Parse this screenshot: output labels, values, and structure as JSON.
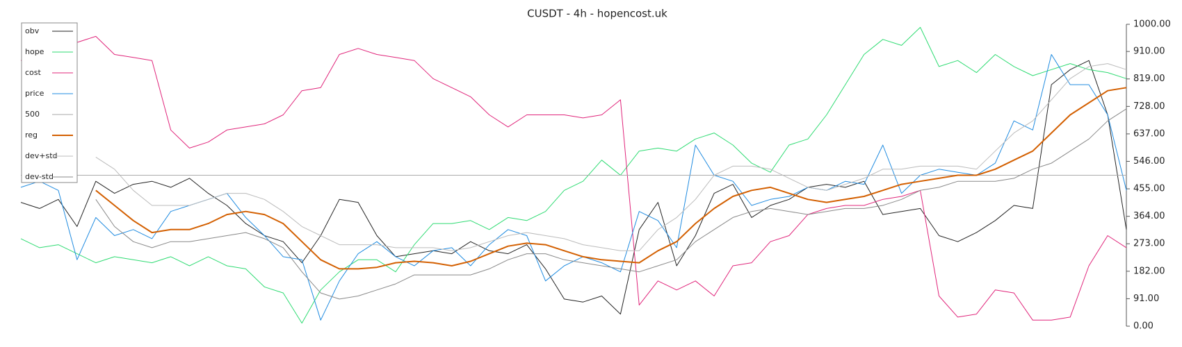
{
  "chart_data": {
    "type": "line",
    "title": "CUSDT - 4h - hopencost.uk",
    "ylim": [
      0,
      1000
    ],
    "yticks": [
      {
        "value": 0,
        "label": "0.00"
      },
      {
        "value": 91,
        "label": "91.00"
      },
      {
        "value": 182,
        "label": "182.00"
      },
      {
        "value": 273,
        "label": "273.00"
      },
      {
        "value": 364,
        "label": "364.00"
      },
      {
        "value": 455,
        "label": "455.00"
      },
      {
        "value": 546,
        "label": "546.00"
      },
      {
        "value": 637,
        "label": "637.00"
      },
      {
        "value": 728,
        "label": "728.00"
      },
      {
        "value": 819,
        "label": "819.00"
      },
      {
        "value": 910,
        "label": "910.00"
      },
      {
        "value": 1000,
        "label": "1000.00"
      }
    ],
    "grid": false,
    "legend": "upper-left",
    "series": [
      {
        "name": "obv",
        "color": "#222222",
        "values": [
          410,
          390,
          420,
          330,
          480,
          440,
          470,
          480,
          460,
          490,
          440,
          400,
          340,
          300,
          280,
          210,
          300,
          420,
          410,
          300,
          230,
          240,
          250,
          240,
          280,
          250,
          240,
          270,
          190,
          90,
          80,
          100,
          40,
          320,
          410,
          200,
          300,
          440,
          470,
          360,
          400,
          420,
          460,
          470,
          460,
          480,
          370,
          380,
          390,
          300,
          280,
          310,
          350,
          400,
          390,
          800,
          850,
          880,
          700,
          320
        ]
      },
      {
        "name": "hope",
        "color": "#2edb72",
        "values": [
          290,
          260,
          270,
          240,
          210,
          230,
          220,
          210,
          230,
          200,
          230,
          200,
          190,
          130,
          110,
          10,
          120,
          180,
          220,
          220,
          180,
          270,
          340,
          340,
          350,
          320,
          360,
          350,
          380,
          450,
          480,
          550,
          500,
          580,
          590,
          580,
          620,
          640,
          600,
          540,
          510,
          600,
          620,
          700,
          800,
          900,
          950,
          930,
          990,
          860,
          880,
          840,
          900,
          860,
          830,
          850,
          870,
          850,
          840,
          820
        ]
      },
      {
        "name": "cost",
        "color": "#e0247a",
        "values": [
          880,
          900,
          970,
          940,
          960,
          900,
          890,
          880,
          650,
          590,
          610,
          650,
          660,
          670,
          700,
          780,
          790,
          900,
          920,
          900,
          890,
          880,
          820,
          790,
          760,
          700,
          660,
          700,
          700,
          700,
          690,
          700,
          750,
          70,
          150,
          120,
          150,
          100,
          200,
          210,
          280,
          300,
          370,
          390,
          400,
          400,
          420,
          430,
          450,
          100,
          30,
          40,
          120,
          110,
          20,
          20,
          30,
          200,
          300,
          260
        ]
      },
      {
        "name": "price",
        "color": "#1f8be0",
        "values": [
          460,
          480,
          450,
          220,
          360,
          300,
          320,
          290,
          380,
          400,
          420,
          440,
          360,
          300,
          230,
          220,
          20,
          150,
          240,
          280,
          230,
          200,
          250,
          260,
          200,
          270,
          320,
          300,
          150,
          200,
          230,
          210,
          180,
          380,
          350,
          260,
          600,
          500,
          480,
          400,
          420,
          430,
          460,
          450,
          480,
          470,
          600,
          440,
          500,
          520,
          510,
          500,
          540,
          680,
          650,
          900,
          800,
          800,
          700,
          450
        ]
      },
      {
        "name": "500",
        "color": "#aaaaaa",
        "values": [
          500,
          500,
          500,
          500,
          500,
          500,
          500,
          500,
          500,
          500,
          500,
          500,
          500,
          500,
          500,
          500,
          500,
          500,
          500,
          500,
          500,
          500,
          500,
          500,
          500,
          500,
          500,
          500,
          500,
          500,
          500,
          500,
          500,
          500,
          500,
          500,
          500,
          500,
          500,
          500,
          500,
          500,
          500,
          500,
          500,
          500,
          500,
          500,
          500,
          500,
          500,
          500,
          500,
          500,
          500,
          500,
          500,
          500,
          500,
          500
        ]
      },
      {
        "name": "reg",
        "color": "#d35f00",
        "line_width": 2,
        "values": [
          null,
          null,
          null,
          null,
          450,
          400,
          350,
          310,
          320,
          320,
          340,
          370,
          380,
          370,
          340,
          280,
          220,
          190,
          190,
          195,
          210,
          215,
          210,
          200,
          215,
          240,
          265,
          275,
          270,
          250,
          230,
          220,
          215,
          210,
          250,
          280,
          340,
          390,
          430,
          450,
          460,
          440,
          420,
          410,
          420,
          430,
          450,
          470,
          480,
          490,
          500,
          500,
          520,
          550,
          580,
          640,
          700,
          740,
          780,
          790
        ]
      },
      {
        "name": "dev+std",
        "color": "#bbbbbb",
        "values": [
          null,
          null,
          null,
          null,
          560,
          520,
          450,
          400,
          400,
          400,
          420,
          440,
          440,
          420,
          380,
          330,
          300,
          270,
          270,
          270,
          260,
          260,
          260,
          250,
          260,
          280,
          300,
          310,
          300,
          290,
          270,
          260,
          250,
          250,
          320,
          360,
          420,
          500,
          530,
          530,
          520,
          490,
          460,
          450,
          470,
          490,
          520,
          520,
          530,
          530,
          530,
          520,
          580,
          640,
          680,
          750,
          820,
          860,
          870,
          850
        ]
      },
      {
        "name": "dev-std",
        "color": "#888888",
        "values": [
          null,
          null,
          null,
          null,
          420,
          330,
          280,
          260,
          280,
          280,
          290,
          300,
          310,
          290,
          260,
          180,
          110,
          90,
          100,
          120,
          140,
          170,
          170,
          170,
          170,
          190,
          220,
          240,
          240,
          220,
          210,
          200,
          190,
          180,
          200,
          220,
          280,
          320,
          360,
          380,
          390,
          380,
          370,
          380,
          390,
          390,
          400,
          420,
          450,
          460,
          480,
          480,
          480,
          490,
          520,
          540,
          580,
          620,
          680,
          720
        ]
      }
    ]
  }
}
